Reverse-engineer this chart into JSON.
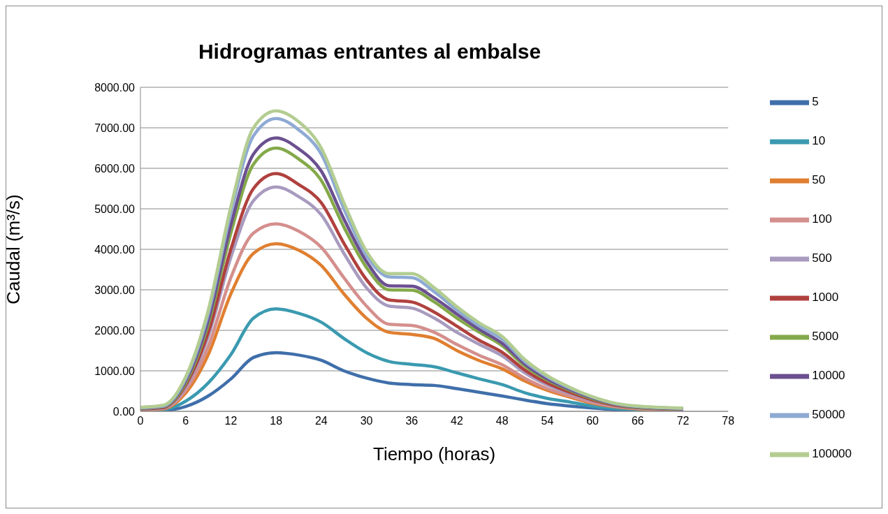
{
  "chart_data": {
    "type": "line",
    "title": "Hidrogramas entrantes al embalse",
    "xlabel": "Tiempo (horas)",
    "ylabel": "Caudal (m³/s)",
    "x": [
      0,
      3,
      6,
      9,
      12,
      15,
      18,
      21,
      24,
      27,
      30,
      33,
      36,
      39,
      42,
      45,
      48,
      51,
      54,
      57,
      60,
      63,
      66,
      69,
      72
    ],
    "xlim": [
      0,
      78
    ],
    "xticks": [
      0,
      6,
      12,
      18,
      24,
      30,
      36,
      42,
      48,
      54,
      60,
      66,
      72,
      78
    ],
    "ylim": [
      0,
      8000
    ],
    "yticks": [
      {
        "value": 0,
        "label": "0.00"
      },
      {
        "value": 1000,
        "label": "1000.00"
      },
      {
        "value": 2000,
        "label": "2000.00"
      },
      {
        "value": 3000,
        "label": "3000.00"
      },
      {
        "value": 4000,
        "label": "4000.00"
      },
      {
        "value": 5000,
        "label": "5000.00"
      },
      {
        "value": 6000,
        "label": "6000.00"
      },
      {
        "value": 7000,
        "label": "7000.00"
      },
      {
        "value": 8000,
        "label": "8000.00"
      }
    ],
    "grid": "y",
    "legend": "right",
    "marker": "none",
    "line_style": "solid",
    "series": [
      {
        "name": "5",
        "color": "#3f6faa",
        "values": [
          10,
          20,
          120,
          380,
          800,
          1330,
          1450,
          1390,
          1260,
          1000,
          820,
          700,
          660,
          640,
          560,
          470,
          380,
          280,
          190,
          130,
          80,
          40,
          20,
          10,
          10
        ]
      },
      {
        "name": "10",
        "color": "#3a9ab0",
        "values": [
          20,
          40,
          250,
          700,
          1400,
          2300,
          2530,
          2420,
          2200,
          1800,
          1450,
          1230,
          1160,
          1100,
          950,
          800,
          660,
          460,
          320,
          230,
          130,
          70,
          40,
          20,
          20
        ]
      },
      {
        "name": "50",
        "color": "#e07f30",
        "values": [
          30,
          60,
          450,
          1400,
          2900,
          3900,
          4140,
          3980,
          3600,
          2900,
          2300,
          1950,
          1900,
          1800,
          1500,
          1250,
          1050,
          750,
          520,
          350,
          200,
          110,
          60,
          30,
          30
        ]
      },
      {
        "name": "100",
        "color": "#d48f8c",
        "values": [
          40,
          70,
          520,
          1600,
          3300,
          4400,
          4630,
          4450,
          4050,
          3300,
          2600,
          2150,
          2120,
          1950,
          1650,
          1380,
          1150,
          820,
          560,
          380,
          220,
          120,
          70,
          40,
          30
        ]
      },
      {
        "name": "500",
        "color": "#a89bbf",
        "values": [
          50,
          80,
          600,
          1850,
          3800,
          5200,
          5540,
          5300,
          4850,
          3900,
          3050,
          2600,
          2550,
          2300,
          1950,
          1650,
          1370,
          950,
          650,
          440,
          260,
          140,
          80,
          50,
          40
        ]
      },
      {
        "name": "1000",
        "color": "#b0413e",
        "values": [
          60,
          90,
          650,
          1950,
          4000,
          5500,
          5870,
          5600,
          5150,
          4150,
          3250,
          2750,
          2700,
          2450,
          2100,
          1750,
          1460,
          1020,
          700,
          470,
          280,
          150,
          90,
          60,
          50
        ]
      },
      {
        "name": "5000",
        "color": "#84a94a",
        "values": [
          70,
          110,
          700,
          2150,
          4400,
          6100,
          6500,
          6230,
          5700,
          4550,
          3550,
          3000,
          2990,
          2700,
          2300,
          1950,
          1620,
          1120,
          770,
          520,
          310,
          170,
          100,
          70,
          60
        ]
      },
      {
        "name": "10000",
        "color": "#6b5090",
        "values": [
          80,
          120,
          750,
          2250,
          4600,
          6350,
          6750,
          6480,
          5930,
          4750,
          3700,
          3100,
          3090,
          2800,
          2400,
          2020,
          1680,
          1170,
          800,
          540,
          330,
          180,
          110,
          80,
          60
        ]
      },
      {
        "name": "50000",
        "color": "#8eaad4",
        "values": [
          90,
          130,
          800,
          2400,
          4900,
          6800,
          7230,
          6950,
          6350,
          5000,
          3850,
          3320,
          3300,
          2950,
          2500,
          2100,
          1780,
          1230,
          850,
          570,
          350,
          190,
          120,
          90,
          70
        ]
      },
      {
        "name": "100000",
        "color": "#b3cd91",
        "values": [
          100,
          150,
          850,
          2500,
          5050,
          7000,
          7420,
          7150,
          6500,
          5150,
          3950,
          3400,
          3400,
          3050,
          2580,
          2180,
          1850,
          1280,
          880,
          590,
          360,
          200,
          130,
          100,
          80
        ]
      }
    ]
  }
}
